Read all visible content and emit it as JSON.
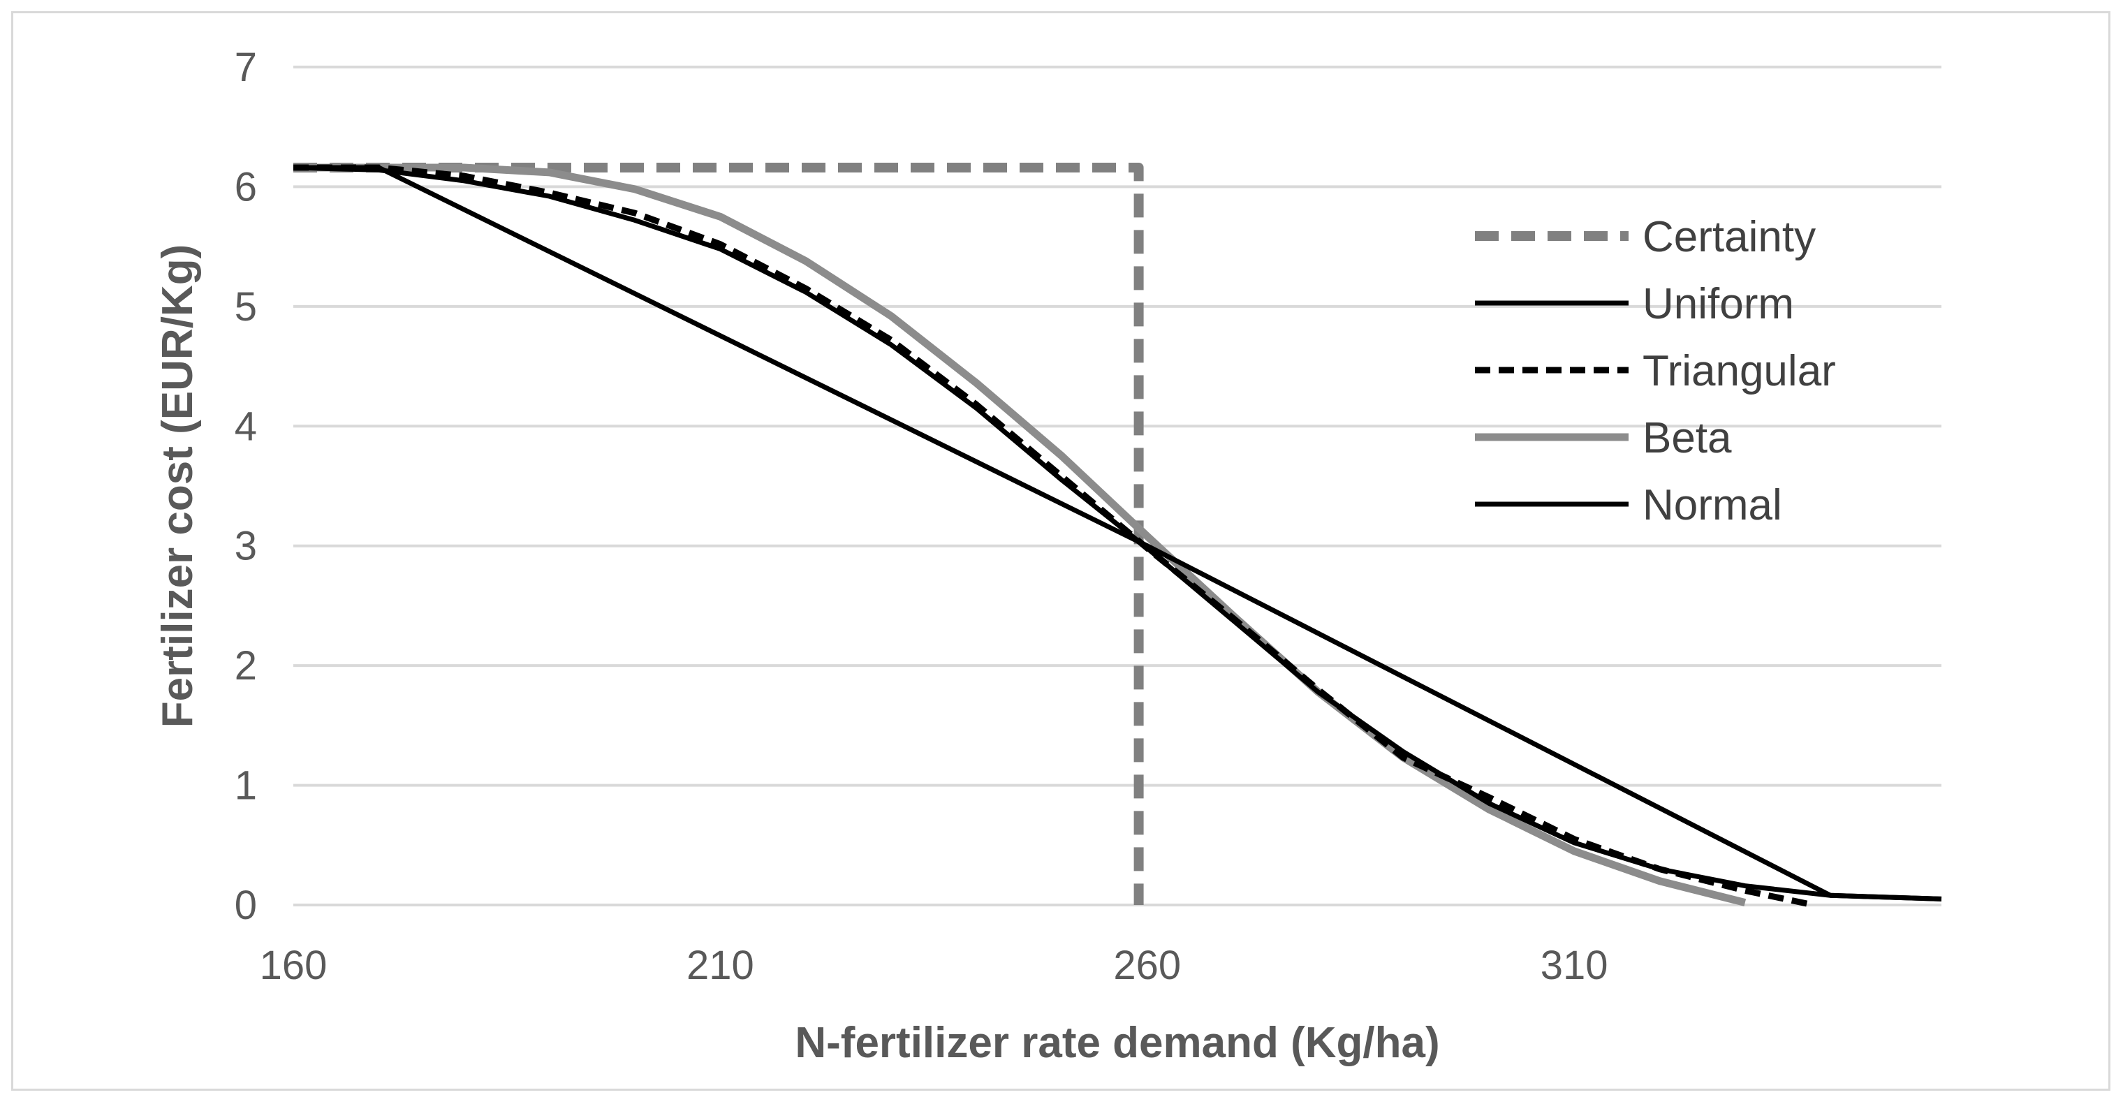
{
  "chart_data": {
    "type": "line",
    "title": "",
    "xlabel": "N-fertilizer rate demand (Kg/ha)",
    "ylabel": "Fertilizer cost  (EUR/Kg)",
    "xlim": [
      160,
      353
    ],
    "ylim": [
      0,
      7
    ],
    "xticks": [
      160,
      210,
      260,
      310
    ],
    "yticks": [
      0,
      1,
      2,
      3,
      4,
      5,
      6,
      7
    ],
    "grid": "horizontal",
    "legend_position": "right",
    "series": [
      {
        "name": "Certainty",
        "color": "#808080",
        "style": "dashed",
        "x": [
          160,
          259,
          259
        ],
        "y": [
          6.16,
          6.16,
          0
        ]
      },
      {
        "name": "Uniform",
        "color": "#000000",
        "style": "solid",
        "x": [
          160,
          170,
          260,
          340,
          353
        ],
        "y": [
          6.16,
          6.16,
          3.0,
          0.08,
          0.05
        ]
      },
      {
        "name": "Triangular",
        "color": "#000000",
        "style": "dashed",
        "x": [
          160,
          170,
          180,
          190,
          200,
          210,
          220,
          230,
          240,
          250,
          260,
          270,
          280,
          290,
          300,
          310,
          320,
          330,
          338
        ],
        "y": [
          6.16,
          6.16,
          6.09,
          5.95,
          5.78,
          5.52,
          5.15,
          4.72,
          4.18,
          3.58,
          2.98,
          2.4,
          1.8,
          1.23,
          0.9,
          0.55,
          0.3,
          0.12,
          0.0
        ]
      },
      {
        "name": "Beta",
        "color": "#8c8c8c",
        "style": "solid",
        "x": [
          160,
          180,
          190,
          200,
          210,
          220,
          230,
          240,
          250,
          260,
          270,
          280,
          290,
          300,
          310,
          320,
          330
        ],
        "y": [
          6.16,
          6.16,
          6.12,
          5.98,
          5.75,
          5.38,
          4.92,
          4.36,
          3.75,
          3.08,
          2.42,
          1.78,
          1.23,
          0.8,
          0.45,
          0.2,
          0.02
        ]
      },
      {
        "name": "Normal",
        "color": "#000000",
        "style": "solid",
        "x": [
          160,
          170,
          180,
          190,
          200,
          210,
          220,
          230,
          240,
          250,
          260,
          270,
          280,
          290,
          300,
          310,
          320,
          330,
          340,
          353
        ],
        "y": [
          6.16,
          6.14,
          6.05,
          5.92,
          5.72,
          5.48,
          5.12,
          4.68,
          4.15,
          3.55,
          2.98,
          2.38,
          1.78,
          1.28,
          0.85,
          0.52,
          0.3,
          0.16,
          0.08,
          0.05
        ]
      }
    ]
  }
}
